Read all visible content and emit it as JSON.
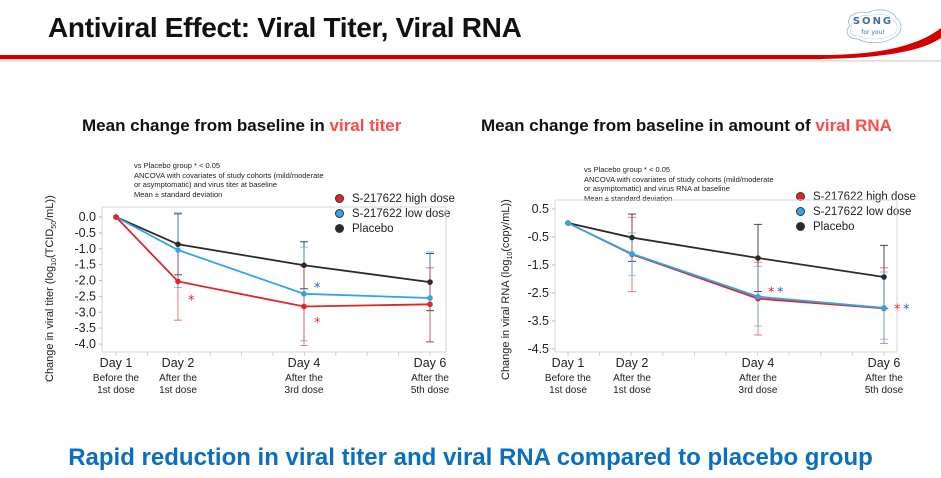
{
  "header": {
    "title": "Antiviral Effect: Viral Titer, Viral RNA",
    "logo_main": "SONG",
    "logo_sub": "for you!"
  },
  "footer": {
    "headline": "Rapid reduction in viral titer and viral RNA compared to placebo group"
  },
  "colors": {
    "high_dose": "#e0252b",
    "low_dose": "#2fa6ea",
    "placebo": "#2b2b2b",
    "accent_red": "#d40000",
    "headline_blue": "#0a6fc2",
    "star_red": "#e0252b",
    "star_blue": "#2a64c9"
  },
  "chart_data": [
    {
      "type": "line",
      "title_prefix": "Mean change from baseline in ",
      "title_highlight": "viral titer",
      "ylabel": "Change in viral titer (log10(TCID50/mL))",
      "ylim": [
        -4.2,
        0.3
      ],
      "yticks": [
        0.0,
        -0.5,
        -1.0,
        -1.5,
        -2.0,
        -2.5,
        -3.0,
        -3.5,
        -4.0
      ],
      "ytick_labels": [
        "0.0",
        "-0.5",
        "-1.0",
        "-1.5",
        "-2.0",
        "-2.5",
        "-3.0",
        "-3.5",
        "-4.0"
      ],
      "x": [
        1,
        2,
        4,
        6
      ],
      "xlim": [
        0.75,
        6.25
      ],
      "categories": [
        "Day 1",
        "Day 2",
        "Day 4",
        "Day 6"
      ],
      "category_sublabels": [
        [
          "Before the",
          "1st dose"
        ],
        [
          "After the",
          "1st dose"
        ],
        [
          "After the",
          "3rd dose"
        ],
        [
          "After the",
          "5th dose"
        ]
      ],
      "notes": [
        "vs Placebo group * < 0.05",
        "ANCOVA with covariates of study cohorts (mild/moderate",
        "or asymptomatic) and virus titer at baseline",
        "Mean ± standard deviation"
      ],
      "legend": [
        "S-217622 high dose",
        "S-217622 low dose",
        "Placebo"
      ],
      "legend_position": "top-right",
      "grid": false,
      "series": [
        {
          "name": "Placebo",
          "key": "placebo",
          "values": [
            0.0,
            -0.86,
            -1.52,
            -2.05
          ],
          "sd_upper": [
            null,
            0.1,
            -0.78,
            -1.15
          ],
          "sd_lower": [
            null,
            -1.82,
            -2.26,
            -2.95
          ]
        },
        {
          "name": "S-217622 low dose",
          "key": "low_dose",
          "values": [
            0.0,
            -1.04,
            -2.42,
            -2.55
          ],
          "sd_upper": [
            null,
            0.13,
            -0.95,
            -1.1
          ],
          "sd_lower": [
            null,
            -2.22,
            -3.9,
            -3.95
          ]
        },
        {
          "name": "S-217622 high dose",
          "key": "high_dose",
          "values": [
            0.0,
            -2.03,
            -2.82,
            -2.75
          ],
          "sd_upper": [
            null,
            -0.85,
            -1.55,
            -1.6
          ],
          "sd_lower": [
            null,
            -3.25,
            -4.05,
            -3.92
          ]
        }
      ],
      "significance": [
        {
          "x": 4,
          "y": -2.2,
          "marks": [
            "low_dose"
          ]
        },
        {
          "x": 2,
          "y": -2.6,
          "marks": [
            "high_dose"
          ]
        },
        {
          "x": 4,
          "y": -3.3,
          "marks": [
            "high_dose"
          ]
        }
      ]
    },
    {
      "type": "line",
      "title_prefix": "Mean change from baseline in amount of ",
      "title_highlight": "viral RNA",
      "ylabel": "Change in viral RNA (log10(copy/mL))",
      "ylim": [
        -4.65,
        0.85
      ],
      "yticks": [
        0.5,
        -0.5,
        -1.5,
        -2.5,
        -3.5,
        -4.5
      ],
      "ytick_labels": [
        "0.5",
        "-0.5",
        "-1.5",
        "-2.5",
        "-3.5",
        "-4.5"
      ],
      "x": [
        1,
        2,
        4,
        6
      ],
      "xlim": [
        0.75,
        6.25
      ],
      "categories": [
        "Day 1",
        "Day 2",
        "Day 4",
        "Day 6"
      ],
      "category_sublabels": [
        [
          "Before the",
          "1st dose"
        ],
        [
          "After the",
          "1st dose"
        ],
        [
          "After the",
          "3rd dose"
        ],
        [
          "After the",
          "5th dose"
        ]
      ],
      "notes": [
        "vs Placebo group  * < 0.05",
        "ANCOVA with covariates of study cohorts (mild/moderate",
        "or asymptomatic) and virus RNA at baseline",
        "Mean ± standard deviation"
      ],
      "legend": [
        "S-217622 high dose",
        "S-217622 low dose",
        "Placebo"
      ],
      "legend_position": "top-right",
      "grid": false,
      "series": [
        {
          "name": "Placebo",
          "key": "placebo",
          "values": [
            0.0,
            -0.52,
            -1.25,
            -1.93
          ],
          "sd_upper": [
            null,
            0.32,
            -0.05,
            -0.8
          ],
          "sd_lower": [
            null,
            -1.37,
            -2.45,
            -3.05
          ]
        },
        {
          "name": "S-217622 high dose",
          "key": "high_dose",
          "values": [
            0.0,
            -1.12,
            -2.7,
            -3.05
          ],
          "sd_upper": [
            null,
            0.2,
            -1.4,
            -1.6
          ],
          "sd_lower": [
            null,
            -2.45,
            -4.0,
            -4.3
          ]
        },
        {
          "name": "S-217622 low dose",
          "key": "low_dose",
          "values": [
            0.0,
            -1.1,
            -2.63,
            -3.03
          ],
          "sd_upper": [
            null,
            -0.35,
            -1.55,
            -1.75
          ],
          "sd_lower": [
            null,
            -1.88,
            -3.68,
            -4.15
          ]
        }
      ],
      "significance": [
        {
          "x": 4,
          "y": -2.45,
          "marks": [
            "high_dose",
            "low_dose"
          ]
        },
        {
          "x": 6,
          "y": -3.05,
          "marks": [
            "high_dose",
            "low_dose"
          ]
        }
      ]
    }
  ]
}
